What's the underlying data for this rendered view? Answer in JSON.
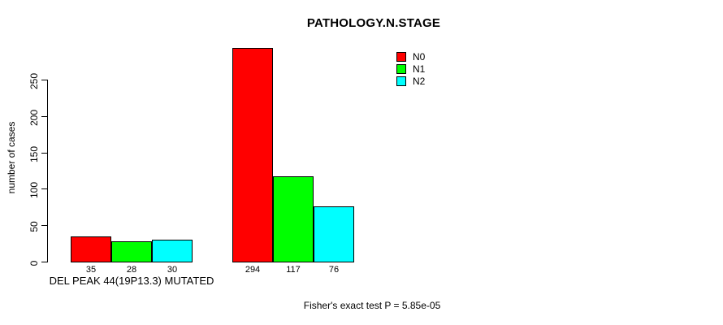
{
  "chart_data": {
    "type": "bar",
    "title": "PATHOLOGY.N.STAGE",
    "xlabel": "",
    "ylabel": "number of cases",
    "ylim": [
      0,
      250
    ],
    "yticks": [
      0,
      50,
      100,
      150,
      200,
      250
    ],
    "grid": false,
    "legend_position": "top-right",
    "series": [
      {
        "name": "N0",
        "color": "#ff0000"
      },
      {
        "name": "N1",
        "color": "#00ff00"
      },
      {
        "name": "N2",
        "color": "#00ffff"
      }
    ],
    "groups": [
      {
        "label": "DEL PEAK 44(19P13.3) MUTATED",
        "values": [
          35,
          28,
          30
        ]
      },
      {
        "label": "",
        "values": [
          294,
          117,
          76
        ]
      }
    ],
    "annotation": "Fisher's exact test P = 5.85e-05"
  }
}
